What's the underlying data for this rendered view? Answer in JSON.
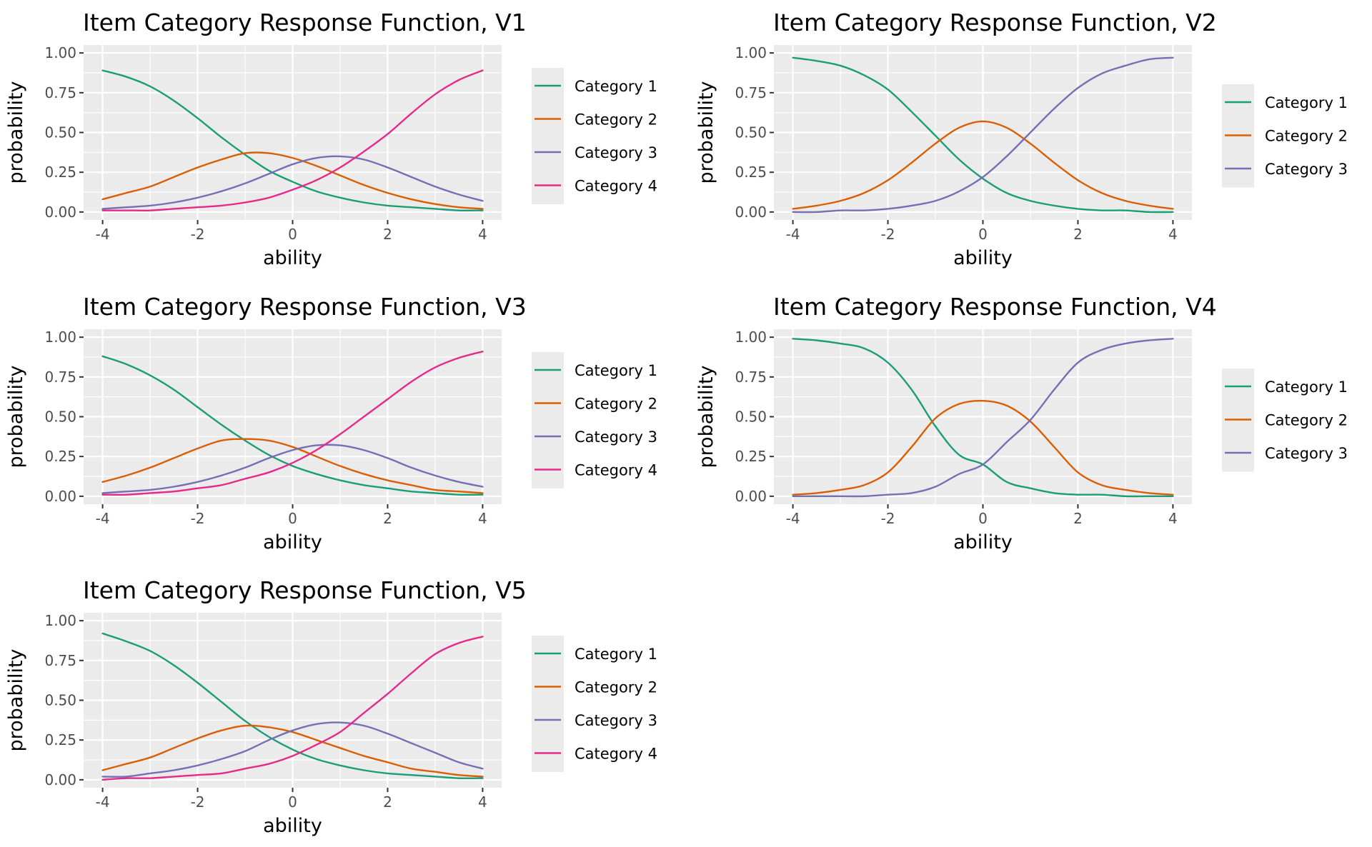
{
  "palette": {
    "category_1": "#1b9e77",
    "category_2": "#d95f02",
    "category_3": "#7570b3",
    "category_4": "#e7298a",
    "panel_background": "#ebebeb",
    "grid": "#ffffff"
  },
  "chart_data": [
    {
      "type": "line",
      "title": "Item Category Response Function, V1",
      "xlabel": "ability",
      "ylabel": "probability",
      "xlim": [
        -4,
        4
      ],
      "ylim": [
        0,
        1
      ],
      "xticks": [
        "-4",
        "-2",
        "0",
        "2",
        "4"
      ],
      "yticks": [
        "0.00",
        "0.25",
        "0.50",
        "0.75",
        "1.00"
      ],
      "grid": true,
      "legend_position": "right",
      "x": [
        -4,
        -3.5,
        -3,
        -2.5,
        -2,
        -1.5,
        -1,
        -0.5,
        0,
        0.5,
        1,
        1.5,
        2,
        2.5,
        3,
        3.5,
        4
      ],
      "series": [
        {
          "name": "Category 1",
          "values": [
            0.89,
            0.85,
            0.79,
            0.7,
            0.59,
            0.47,
            0.36,
            0.26,
            0.19,
            0.13,
            0.09,
            0.06,
            0.04,
            0.03,
            0.02,
            0.01,
            0.01
          ]
        },
        {
          "name": "Category 2",
          "values": [
            0.08,
            0.12,
            0.16,
            0.22,
            0.28,
            0.33,
            0.37,
            0.37,
            0.34,
            0.29,
            0.23,
            0.17,
            0.12,
            0.08,
            0.05,
            0.03,
            0.02
          ]
        },
        {
          "name": "Category 3",
          "values": [
            0.02,
            0.03,
            0.04,
            0.06,
            0.09,
            0.13,
            0.18,
            0.24,
            0.3,
            0.34,
            0.35,
            0.33,
            0.28,
            0.22,
            0.16,
            0.11,
            0.07
          ]
        },
        {
          "name": "Category 4",
          "values": [
            0.01,
            0.01,
            0.01,
            0.02,
            0.03,
            0.04,
            0.06,
            0.09,
            0.14,
            0.2,
            0.28,
            0.38,
            0.49,
            0.62,
            0.74,
            0.83,
            0.89
          ]
        }
      ]
    },
    {
      "type": "line",
      "title": "Item Category Response Function, V2",
      "xlabel": "ability",
      "ylabel": "probability",
      "xlim": [
        -4,
        4
      ],
      "ylim": [
        0,
        1
      ],
      "xticks": [
        "-4",
        "-2",
        "0",
        "2",
        "4"
      ],
      "yticks": [
        "0.00",
        "0.25",
        "0.50",
        "0.75",
        "1.00"
      ],
      "grid": true,
      "legend_position": "right",
      "x": [
        -4,
        -3.5,
        -3,
        -2.5,
        -2,
        -1.5,
        -1,
        -0.5,
        0,
        0.5,
        1,
        1.5,
        2,
        2.5,
        3,
        3.5,
        4
      ],
      "series": [
        {
          "name": "Category 1",
          "values": [
            0.97,
            0.95,
            0.92,
            0.86,
            0.77,
            0.63,
            0.48,
            0.33,
            0.21,
            0.12,
            0.07,
            0.04,
            0.02,
            0.01,
            0.01,
            0.0,
            0.0
          ]
        },
        {
          "name": "Category 2",
          "values": [
            0.02,
            0.04,
            0.07,
            0.12,
            0.2,
            0.31,
            0.43,
            0.53,
            0.57,
            0.53,
            0.43,
            0.31,
            0.2,
            0.12,
            0.07,
            0.04,
            0.02
          ]
        },
        {
          "name": "Category 3",
          "values": [
            0.0,
            0.0,
            0.01,
            0.01,
            0.02,
            0.04,
            0.07,
            0.13,
            0.22,
            0.35,
            0.5,
            0.65,
            0.78,
            0.87,
            0.92,
            0.96,
            0.97
          ]
        }
      ]
    },
    {
      "type": "line",
      "title": "Item Category Response Function, V3",
      "xlabel": "ability",
      "ylabel": "probability",
      "xlim": [
        -4,
        4
      ],
      "ylim": [
        0,
        1
      ],
      "xticks": [
        "-4",
        "-2",
        "0",
        "2",
        "4"
      ],
      "yticks": [
        "0.00",
        "0.25",
        "0.50",
        "0.75",
        "1.00"
      ],
      "grid": true,
      "legend_position": "right",
      "x": [
        -4,
        -3.5,
        -3,
        -2.5,
        -2,
        -1.5,
        -1,
        -0.5,
        0,
        0.5,
        1,
        1.5,
        2,
        2.5,
        3,
        3.5,
        4
      ],
      "series": [
        {
          "name": "Category 1",
          "values": [
            0.88,
            0.83,
            0.76,
            0.67,
            0.56,
            0.45,
            0.35,
            0.26,
            0.19,
            0.14,
            0.1,
            0.07,
            0.05,
            0.03,
            0.02,
            0.01,
            0.01
          ]
        },
        {
          "name": "Category 2",
          "values": [
            0.09,
            0.13,
            0.18,
            0.24,
            0.3,
            0.35,
            0.36,
            0.35,
            0.31,
            0.25,
            0.19,
            0.14,
            0.1,
            0.07,
            0.04,
            0.03,
            0.02
          ]
        },
        {
          "name": "Category 3",
          "values": [
            0.02,
            0.03,
            0.04,
            0.06,
            0.09,
            0.13,
            0.18,
            0.24,
            0.29,
            0.32,
            0.32,
            0.29,
            0.24,
            0.18,
            0.13,
            0.09,
            0.06
          ]
        },
        {
          "name": "Category 4",
          "values": [
            0.01,
            0.01,
            0.02,
            0.03,
            0.05,
            0.07,
            0.11,
            0.15,
            0.21,
            0.29,
            0.39,
            0.5,
            0.61,
            0.72,
            0.81,
            0.87,
            0.91
          ]
        }
      ]
    },
    {
      "type": "line",
      "title": "Item Category Response Function, V4",
      "xlabel": "ability",
      "ylabel": "probability",
      "xlim": [
        -4,
        4
      ],
      "ylim": [
        0,
        1
      ],
      "xticks": [
        "-4",
        "-2",
        "0",
        "2",
        "4"
      ],
      "yticks": [
        "0.00",
        "0.25",
        "0.50",
        "0.75",
        "1.00"
      ],
      "grid": true,
      "legend_position": "right",
      "x": [
        -4,
        -3.5,
        -3,
        -2.5,
        -2,
        -1.5,
        -1,
        -0.5,
        0,
        0.5,
        1,
        1.5,
        2,
        2.5,
        3,
        3.5,
        4
      ],
      "series": [
        {
          "name": "Category 1",
          "values": [
            0.99,
            0.98,
            0.96,
            0.93,
            0.84,
            0.67,
            0.44,
            0.26,
            0.2,
            0.09,
            0.05,
            0.02,
            0.01,
            0.01,
            0.0,
            0.0,
            0.0
          ]
        },
        {
          "name": "Category 2",
          "values": [
            0.01,
            0.02,
            0.04,
            0.07,
            0.15,
            0.31,
            0.49,
            0.58,
            0.6,
            0.57,
            0.47,
            0.31,
            0.15,
            0.07,
            0.04,
            0.02,
            0.01
          ]
        },
        {
          "name": "Category 3",
          "values": [
            0.0,
            0.0,
            0.0,
            0.0,
            0.01,
            0.02,
            0.06,
            0.14,
            0.2,
            0.34,
            0.48,
            0.67,
            0.84,
            0.92,
            0.96,
            0.98,
            0.99
          ]
        }
      ]
    },
    {
      "type": "line",
      "title": "Item Category Response Function, V5",
      "xlabel": "ability",
      "ylabel": "probability",
      "xlim": [
        -4,
        4
      ],
      "ylim": [
        0,
        1
      ],
      "xticks": [
        "-4",
        "-2",
        "0",
        "2",
        "4"
      ],
      "yticks": [
        "0.00",
        "0.25",
        "0.50",
        "0.75",
        "1.00"
      ],
      "grid": true,
      "legend_position": "right",
      "x": [
        -4,
        -3.5,
        -3,
        -2.5,
        -2,
        -1.5,
        -1,
        -0.5,
        0,
        0.5,
        1,
        1.5,
        2,
        2.5,
        3,
        3.5,
        4
      ],
      "series": [
        {
          "name": "Category 1",
          "values": [
            0.92,
            0.87,
            0.81,
            0.72,
            0.61,
            0.49,
            0.37,
            0.27,
            0.19,
            0.13,
            0.09,
            0.06,
            0.04,
            0.03,
            0.02,
            0.01,
            0.01
          ]
        },
        {
          "name": "Category 2",
          "values": [
            0.06,
            0.1,
            0.14,
            0.2,
            0.26,
            0.31,
            0.34,
            0.33,
            0.3,
            0.25,
            0.2,
            0.15,
            0.11,
            0.07,
            0.05,
            0.03,
            0.02
          ]
        },
        {
          "name": "Category 3",
          "values": [
            0.02,
            0.02,
            0.04,
            0.06,
            0.09,
            0.13,
            0.18,
            0.25,
            0.31,
            0.35,
            0.36,
            0.34,
            0.29,
            0.23,
            0.17,
            0.11,
            0.07
          ]
        },
        {
          "name": "Category 4",
          "values": [
            0.0,
            0.01,
            0.01,
            0.02,
            0.03,
            0.04,
            0.07,
            0.1,
            0.15,
            0.22,
            0.3,
            0.42,
            0.54,
            0.67,
            0.79,
            0.86,
            0.9
          ]
        }
      ]
    }
  ]
}
